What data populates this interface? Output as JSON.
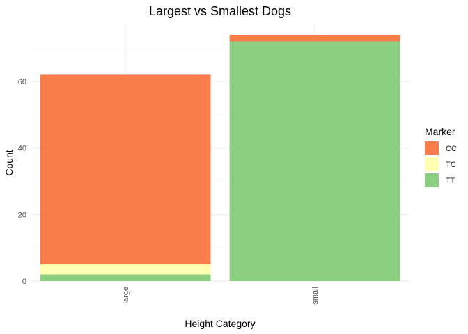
{
  "chart_data": {
    "type": "bar",
    "stacked": true,
    "title": "Largest vs Smallest Dogs",
    "xlabel": "Height Category",
    "ylabel": "Count",
    "categories": [
      "large",
      "small"
    ],
    "y_ticks": [
      0,
      20,
      40,
      60
    ],
    "ylim": [
      0,
      74
    ],
    "grid": true,
    "legend": {
      "title": "Marker",
      "placement": "right"
    },
    "series": [
      {
        "name": "CC",
        "color": "#f87d4a",
        "values": [
          57,
          2
        ]
      },
      {
        "name": "TC",
        "color": "#ffffb3",
        "values": [
          3,
          0
        ]
      },
      {
        "name": "TT",
        "color": "#8ccf80",
        "values": [
          2,
          72
        ]
      }
    ]
  }
}
